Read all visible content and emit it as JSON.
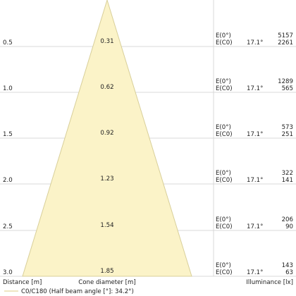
{
  "colors": {
    "cone_fill": "#fbf3c8",
    "cone_stroke": "#d8cf9a",
    "grid_line": "#d9d9d9",
    "text": "#222222",
    "legend_line": "#e3d79c"
  },
  "rows": [
    {
      "distance": "0.5",
      "diameter": "0.31",
      "e0_label": "E(0°)",
      "ec0_label": "E(C0)",
      "angle": "17.1°",
      "e0_value": "5157",
      "ec0_value": "2261"
    },
    {
      "distance": "1.0",
      "diameter": "0.62",
      "e0_label": "E(0°)",
      "ec0_label": "E(C0)",
      "angle": "17.1°",
      "e0_value": "1289",
      "ec0_value": "565"
    },
    {
      "distance": "1.5",
      "diameter": "0.92",
      "e0_label": "E(0°)",
      "ec0_label": "E(C0)",
      "angle": "17.1°",
      "e0_value": "573",
      "ec0_value": "251"
    },
    {
      "distance": "2.0",
      "diameter": "1.23",
      "e0_label": "E(0°)",
      "ec0_label": "E(C0)",
      "angle": "17.1°",
      "e0_value": "322",
      "ec0_value": "141"
    },
    {
      "distance": "2.5",
      "diameter": "1.54",
      "e0_label": "E(0°)",
      "ec0_label": "E(C0)",
      "angle": "17.1°",
      "e0_value": "206",
      "ec0_value": "90"
    },
    {
      "distance": "3.0",
      "diameter": "1.85",
      "e0_label": "E(0°)",
      "ec0_label": "E(C0)",
      "angle": "17.1°",
      "e0_value": "143",
      "ec0_value": "63"
    }
  ],
  "footer": {
    "distance_label": "Distance [m]",
    "diameter_label": "Cone diameter [m]",
    "illuminance_label": "Illuminance [lx]"
  },
  "legend": {
    "text": "C0/C180 (Half beam angle [°]: 34.2°)"
  }
}
